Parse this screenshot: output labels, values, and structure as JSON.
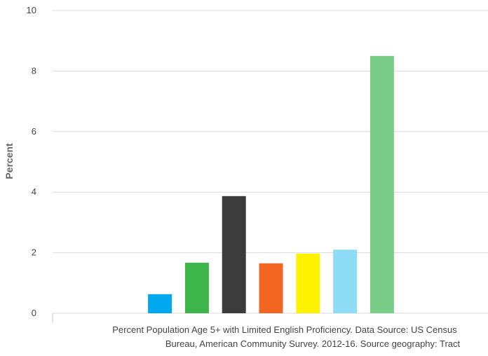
{
  "chart_data": {
    "type": "bar",
    "ylabel": "Percent",
    "ylim": [
      0,
      10
    ],
    "y_ticks": [
      0,
      2,
      4,
      6,
      8,
      10
    ],
    "grid": true,
    "caption_lines": [
      "Percent Population Age 5+ with Limited English Proficiency. Data Source: US Census",
      "Bureau, American Community Survey. 2012-16. Source geography: Tract"
    ],
    "categories": [
      "",
      "",
      "",
      "",
      "",
      "",
      "",
      "",
      "",
      ""
    ],
    "values": [
      null,
      null,
      0.63,
      1.67,
      3.87,
      1.65,
      1.97,
      2.1,
      8.5,
      null
    ],
    "colors": [
      "#ffffff",
      "#ffffff",
      "#00a8f0",
      "#3db54a",
      "#3c3c3c",
      "#f26622",
      "#fff200",
      "#8fdcf7",
      "#7acd86",
      "#ffffff"
    ]
  }
}
